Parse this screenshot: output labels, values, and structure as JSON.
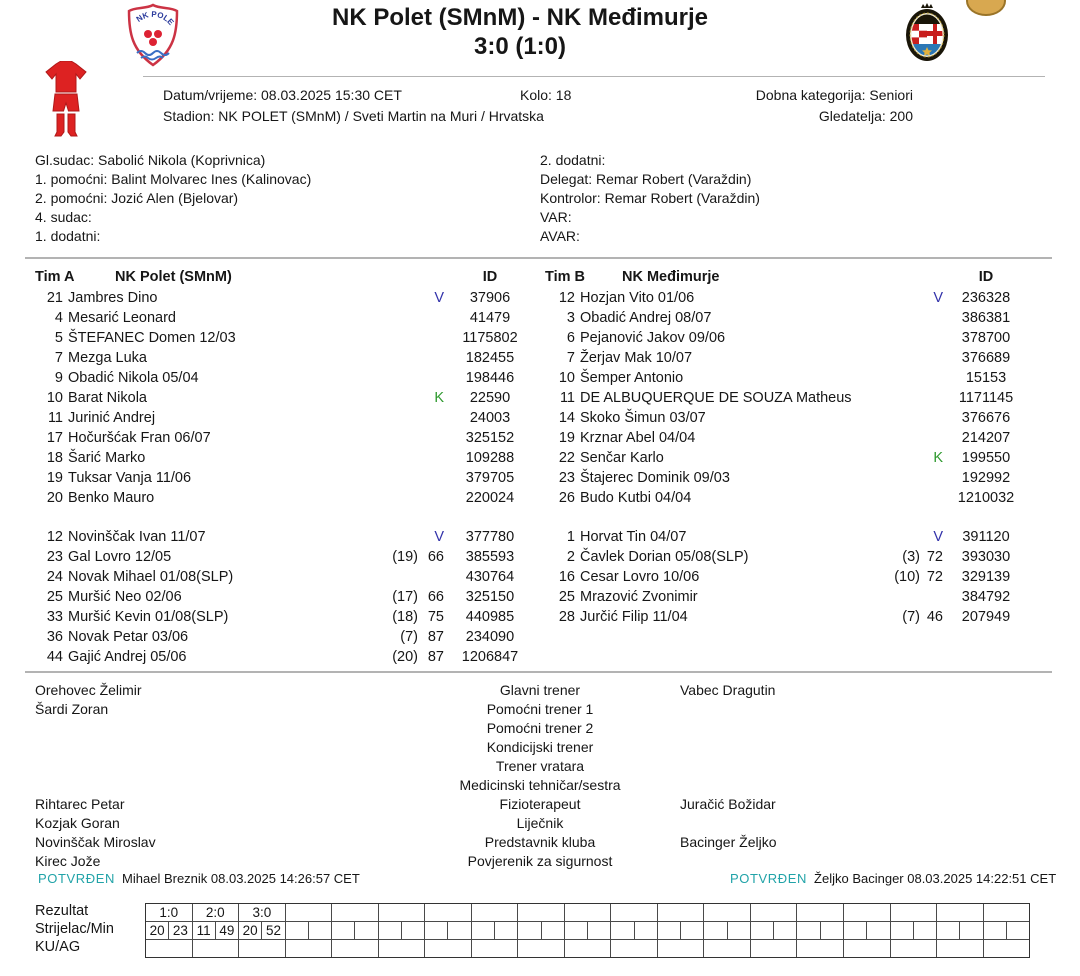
{
  "header": {
    "title": "NK Polet (SMnM) - NK Međimurje",
    "score": "3:0 (1:0)"
  },
  "info": {
    "datum": "Datum/vrijeme: 08.03.2025 15:30 CET",
    "kolo": "Kolo: 18",
    "dobna": "Dobna kategorija: Seniori",
    "stadion": "Stadion: NK POLET (SMnM) / Sveti Martin na Muri / Hrvatska",
    "gledatelja": "Gledatelja: 200"
  },
  "officials": {
    "left": [
      "Gl.sudac: Sabolić Nikola (Koprivnica)",
      "1. pomoćni: Balint Molvarec Ines (Kalinovac)",
      "2. pomoćni: Jozić Alen (Bjelovar)",
      "4. sudac:",
      "1. dodatni:"
    ],
    "right": [
      "2. dodatni:",
      "Delegat: Remar Robert (Varaždin)",
      "Kontrolor: Remar Robert (Varaždin)",
      "VAR:",
      "AVAR:"
    ]
  },
  "teams": [
    {
      "label": "Tim A",
      "name": "NK Polet (SMnM)",
      "id_header": "ID",
      "starters": [
        {
          "num": "21",
          "name": "Jambres Dino",
          "badge": "V",
          "id": "37906"
        },
        {
          "num": "4",
          "name": "Mesarić Leonard",
          "id": "41479"
        },
        {
          "num": "5",
          "name": "ŠTEFANEC Domen 12/03",
          "id": "1175802"
        },
        {
          "num": "7",
          "name": "Mezga Luka",
          "id": "182455"
        },
        {
          "num": "9",
          "name": "Obadić Nikola 05/04",
          "id": "198446"
        },
        {
          "num": "10",
          "name": "Barat Nikola",
          "badge": "K",
          "id": "22590"
        },
        {
          "num": "11",
          "name": "Jurinić Andrej",
          "id": "24003"
        },
        {
          "num": "17",
          "name": "Hočuršćak Fran 06/07",
          "id": "325152"
        },
        {
          "num": "18",
          "name": "Šarić Marko",
          "id": "109288"
        },
        {
          "num": "19",
          "name": "Tuksar Vanja 11/06",
          "id": "379705"
        },
        {
          "num": "20",
          "name": "Benko Mauro",
          "id": "220024"
        }
      ],
      "subs": [
        {
          "num": "12",
          "name": "Novinščak Ivan 11/07",
          "badge": "V",
          "id": "377780"
        },
        {
          "num": "23",
          "name": "Gal Lovro 12/05",
          "sub": "(19)",
          "min": "66",
          "id": "385593"
        },
        {
          "num": "24",
          "name": "Novak Mihael 01/08(SLP)",
          "id": "430764"
        },
        {
          "num": "25",
          "name": "Muršić Neo 02/06",
          "sub": "(17)",
          "min": "66",
          "id": "325150"
        },
        {
          "num": "33",
          "name": "Muršić Kevin 01/08(SLP)",
          "sub": "(18)",
          "min": "75",
          "id": "440985"
        },
        {
          "num": "36",
          "name": "Novak Petar 03/06",
          "sub": "(7)",
          "min": "87",
          "id": "234090"
        },
        {
          "num": "44",
          "name": "Gajić Andrej 05/06",
          "sub": "(20)",
          "min": "87",
          "id": "1206847"
        }
      ]
    },
    {
      "label": "Tim B",
      "name": "NK Međimurje",
      "id_header": "ID",
      "starters": [
        {
          "num": "12",
          "name": "Hozjan Vito 01/06",
          "badge": "V",
          "id": "236328"
        },
        {
          "num": "3",
          "name": "Obadić Andrej 08/07",
          "id": "386381"
        },
        {
          "num": "6",
          "name": "Pejanović Jakov 09/06",
          "id": "378700"
        },
        {
          "num": "7",
          "name": "Žerjav Mak 10/07",
          "id": "376689"
        },
        {
          "num": "10",
          "name": "Šemper Antonio",
          "id": "15153"
        },
        {
          "num": "11",
          "name": "DE ALBUQUERQUE DE SOUZA Matheus",
          "id": "1171145"
        },
        {
          "num": "14",
          "name": "Skoko Šimun 03/07",
          "id": "376676"
        },
        {
          "num": "19",
          "name": "Krznar Abel 04/04",
          "id": "214207"
        },
        {
          "num": "22",
          "name": "Senčar Karlo",
          "badge": "K",
          "id": "199550"
        },
        {
          "num": "23",
          "name": "Štajerec Dominik 09/03",
          "id": "192992"
        },
        {
          "num": "26",
          "name": "Budo Kutbi 04/04",
          "id": "1210032"
        }
      ],
      "subs": [
        {
          "num": "1",
          "name": "Horvat Tin 04/07",
          "badge": "V",
          "id": "391120"
        },
        {
          "num": "2",
          "name": "Čavlek Dorian 05/08(SLP)",
          "sub": "(3)",
          "min": "72",
          "id": "393030"
        },
        {
          "num": "16",
          "name": "Cesar Lovro 10/06",
          "sub": "(10)",
          "min": "72",
          "id": "329139"
        },
        {
          "num": "25",
          "name": "Mrazović Zvonimir",
          "id": "384792"
        },
        {
          "num": "28",
          "name": "Jurčić Filip 11/04",
          "sub": "(7)",
          "min": "46",
          "id": "207949"
        }
      ]
    }
  ],
  "staff": {
    "rows": [
      {
        "left": "Orehovec Želimir",
        "role": "Glavni trener",
        "right": "Vabec Dragutin"
      },
      {
        "left": "Šardi Zoran",
        "role": "Pomoćni trener 1",
        "right": ""
      },
      {
        "left": "",
        "role": "Pomoćni trener 2",
        "right": ""
      },
      {
        "left": "",
        "role": "Kondicijski trener",
        "right": ""
      },
      {
        "left": "",
        "role": "Trener vratara",
        "right": ""
      },
      {
        "left": "",
        "role": "Medicinski tehničar/sestra",
        "right": ""
      },
      {
        "left": "Rihtarec Petar",
        "role": "Fizioterapeut",
        "right": "Juračić Božidar"
      },
      {
        "left": "Kozjak Goran",
        "role": "Liječnik",
        "right": ""
      },
      {
        "left": "Novinščak Miroslav",
        "role": "Predstavnik kluba",
        "right": "Bacinger Željko"
      },
      {
        "left": "Kirec Jože",
        "role": "Povjerenik za sigurnost",
        "right": ""
      }
    ]
  },
  "confirmations": {
    "home": {
      "status": "POTVRĐEN",
      "detail": "Mihael Breznik 08.03.2025 14:26:57 CET"
    },
    "away": {
      "status": "POTVRĐEN",
      "detail": "Željko Bacinger 08.03.2025 14:22:51 CET"
    }
  },
  "result_table": {
    "row_labels": [
      "Rezultat",
      "Strijelac/Min",
      "KU/AG"
    ],
    "num_columns": 19,
    "results": [
      "1:0",
      "2:0",
      "3:0"
    ],
    "scorer_min": [
      [
        "20",
        "23"
      ],
      [
        "11",
        "49"
      ],
      [
        "20",
        "52"
      ]
    ]
  },
  "colors": {
    "goalkeeper_badge": "#3333aa",
    "captain_badge": "#2e992e",
    "confirmed": "#21a3a8",
    "kit_red": "#dd2222",
    "divider": "#b3b3b3"
  }
}
